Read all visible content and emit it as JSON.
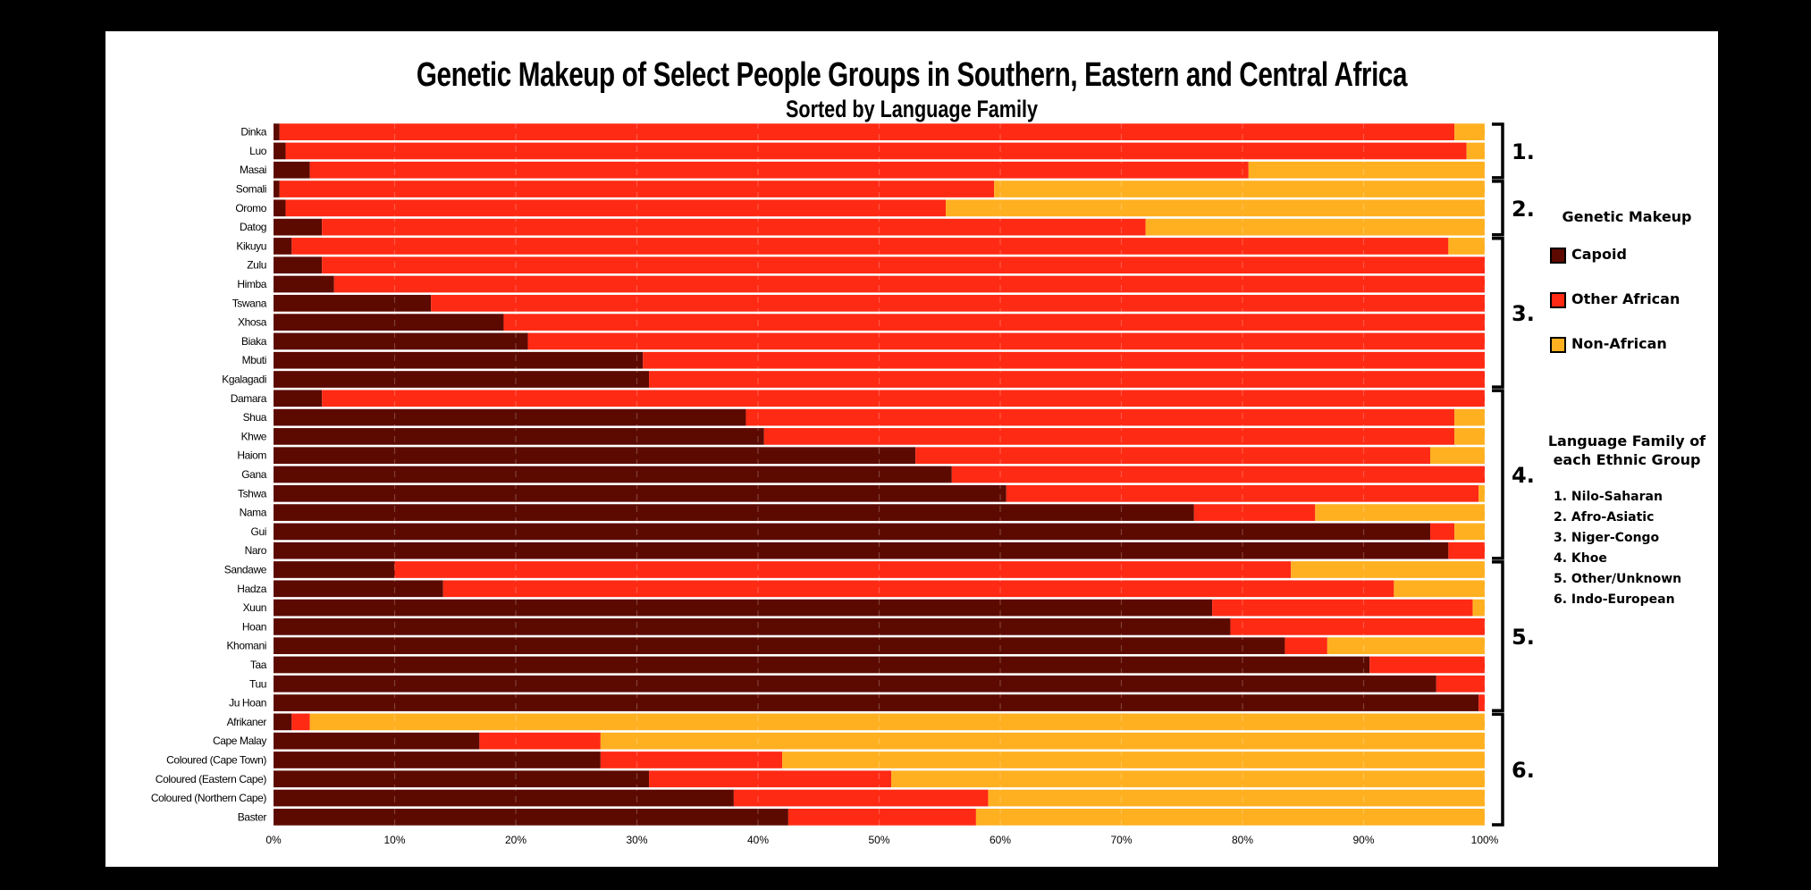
{
  "chart_data": {
    "type": "bar",
    "orientation": "horizontal",
    "stacked": true,
    "title": "Genetic Makeup of Select People Groups in Southern, Eastern and Central Africa",
    "subtitle": "Sorted by Language Family",
    "categories": [
      "Dinka",
      "Luo",
      "Masai",
      "Somali",
      "Oromo",
      "Datog",
      "Kikuyu",
      "Zulu",
      "Himba",
      "Tswana",
      "Xhosa",
      "Biaka",
      "Mbuti",
      "Kgalagadi",
      "Damara",
      "Shua",
      "Khwe",
      "Haiom",
      "Gana",
      "Tshwa",
      "Nama",
      "Gui",
      "Naro",
      "Sandawe",
      "Hadza",
      "Xuun",
      "Hoan",
      "Khomani",
      "Taa",
      "Tuu",
      "Ju Hoan",
      "Afrikaner",
      "Cape Malay",
      "Coloured (Cape Town)",
      "Coloured (Eastern Cape)",
      "Coloured (Northern Cape)",
      "Baster"
    ],
    "series": [
      {
        "name": "Capoid",
        "color": "#5c0a00",
        "values": [
          0.5,
          1,
          3,
          0.5,
          1,
          4,
          1.5,
          4,
          5,
          13,
          19,
          21,
          30.5,
          31,
          4,
          39,
          40.5,
          53,
          56,
          60.5,
          76,
          95.5,
          97,
          10,
          14,
          77.5,
          79,
          83.5,
          90.5,
          96,
          99.5,
          1.5,
          17,
          27,
          31,
          38,
          42.5
        ]
      },
      {
        "name": "Other African",
        "color": "#ff2a14",
        "values": [
          97,
          97.5,
          77.5,
          59,
          54.5,
          68,
          95.5,
          96,
          95,
          87,
          81,
          79,
          69.5,
          69,
          96,
          58.5,
          57,
          42.5,
          44,
          39,
          10,
          2,
          3,
          74,
          78.5,
          21.5,
          21,
          3.5,
          9.5,
          4,
          0.5,
          1.5,
          10,
          15,
          20,
          21,
          15.5
        ]
      },
      {
        "name": "Non-African",
        "color": "#ffb020",
        "values": [
          2.5,
          1.5,
          19.5,
          40.5,
          44.5,
          28,
          3,
          0,
          0,
          0,
          0,
          0,
          0,
          0,
          0,
          2.5,
          2.5,
          4.5,
          0,
          0.5,
          14,
          2.5,
          0,
          16,
          7.5,
          1,
          0,
          13,
          0,
          0,
          0,
          97,
          73,
          58,
          49,
          41,
          42
        ]
      }
    ],
    "xlim": [
      0,
      100
    ],
    "x_ticks": [
      "0%",
      "10%",
      "20%",
      "30%",
      "40%",
      "50%",
      "60%",
      "70%",
      "80%",
      "90%",
      "100%"
    ],
    "grid": true,
    "language_groups": [
      {
        "label": "1.",
        "start": 0,
        "end": 2
      },
      {
        "label": "2.",
        "start": 3,
        "end": 5
      },
      {
        "label": "3.",
        "start": 6,
        "end": 13
      },
      {
        "label": "4.",
        "start": 14,
        "end": 22
      },
      {
        "label": "5.",
        "start": 23,
        "end": 30
      },
      {
        "label": "6.",
        "start": 31,
        "end": 36
      }
    ],
    "legend": {
      "title": "Genetic Makeup",
      "placement": "right",
      "items": [
        "Capoid",
        "Other African",
        "Non-African"
      ]
    },
    "language_legend": {
      "title_line1": "Language Family of",
      "title_line2": "each Ethnic Group",
      "items": [
        "1. Nilo-Saharan",
        "2. Afro-Asiatic",
        "3. Niger-Congo",
        "4. Khoe",
        "5. Other/Unknown",
        "6. Indo-European"
      ]
    }
  }
}
